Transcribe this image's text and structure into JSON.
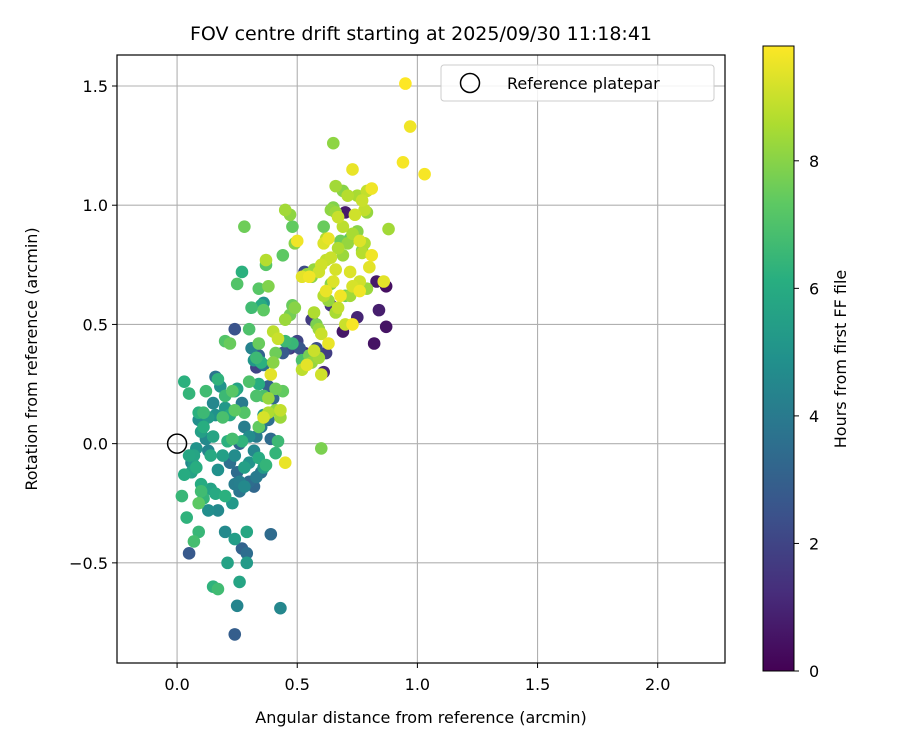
{
  "chart_data": {
    "type": "scatter",
    "title": "FOV centre drift starting at 2025/09/30 11:18:41",
    "xlabel": "Angular distance from reference (arcmin)",
    "ylabel": "Rotation from reference (arcmin)",
    "xlim": [
      -0.25,
      2.28
    ],
    "ylim": [
      -0.92,
      1.63
    ],
    "xticks": [
      0.0,
      0.5,
      1.0,
      1.5,
      2.0
    ],
    "xtick_labels": [
      "0.0",
      "0.5",
      "1.0",
      "1.5",
      "2.0"
    ],
    "yticks": [
      -0.5,
      0.0,
      0.5,
      1.0,
      1.5
    ],
    "ytick_labels": [
      "−0.5",
      "0.0",
      "0.5",
      "1.0",
      "1.5"
    ],
    "grid": true,
    "legend": {
      "placement": "top-right",
      "label": "Reference platepar"
    },
    "reference_point": {
      "x": 0.0,
      "y": 0.0
    },
    "colorbar": {
      "label": "Hours from first FF file",
      "colormap": "viridis",
      "range": [
        0,
        9.8
      ],
      "ticks": [
        0,
        2,
        4,
        6,
        8
      ],
      "tick_labels": [
        "0",
        "2",
        "4",
        "6",
        "8"
      ]
    },
    "points": [
      [
        0.03,
        0.26,
        6.2
      ],
      [
        0.05,
        0.21,
        6.4
      ],
      [
        0.02,
        -0.22,
        6.5
      ],
      [
        0.04,
        -0.31,
        6.3
      ],
      [
        0.03,
        -0.13,
        6.0
      ],
      [
        0.05,
        -0.05,
        5.8
      ],
      [
        0.06,
        -0.12,
        5.6
      ],
      [
        0.07,
        -0.09,
        5.2
      ],
      [
        0.08,
        -0.02,
        5.0
      ],
      [
        0.09,
        0.1,
        4.8
      ],
      [
        0.1,
        0.05,
        5.5
      ],
      [
        0.11,
        0.07,
        6.1
      ],
      [
        0.12,
        0.02,
        4.6
      ],
      [
        0.13,
        -0.03,
        4.4
      ],
      [
        0.14,
        -0.05,
        5.9
      ],
      [
        0.15,
        0.03,
        5.7
      ],
      [
        0.16,
        0.12,
        4.9
      ],
      [
        0.09,
        0.13,
        6.2
      ],
      [
        0.11,
        0.13,
        6.6
      ],
      [
        0.13,
        0.11,
        5.3
      ],
      [
        0.15,
        0.17,
        4.5
      ],
      [
        0.16,
        0.28,
        3.8
      ],
      [
        0.17,
        0.27,
        6.3
      ],
      [
        0.18,
        0.24,
        5.0
      ],
      [
        0.2,
        0.2,
        6.6
      ],
      [
        0.2,
        0.15,
        5.2
      ],
      [
        0.22,
        0.12,
        5.9
      ],
      [
        0.24,
        0.22,
        6.0
      ],
      [
        0.25,
        0.23,
        5.6
      ],
      [
        0.27,
        0.17,
        4.0
      ],
      [
        0.12,
        0.22,
        6.7
      ],
      [
        0.21,
        0.01,
        6.2
      ],
      [
        0.23,
        0.02,
        6.8
      ],
      [
        0.22,
        -0.08,
        3.6
      ],
      [
        0.24,
        -0.05,
        4.7
      ],
      [
        0.25,
        -0.12,
        3.4
      ],
      [
        0.26,
        -0.16,
        4.2
      ],
      [
        0.28,
        -0.1,
        5.5
      ],
      [
        0.3,
        -0.08,
        5.0
      ],
      [
        0.32,
        -0.03,
        4.5
      ],
      [
        0.34,
        -0.06,
        6.0
      ],
      [
        0.35,
        -0.12,
        3.7
      ],
      [
        0.36,
        -0.1,
        5.4
      ],
      [
        0.37,
        -0.09,
        6.4
      ],
      [
        0.33,
        0.03,
        4.0
      ],
      [
        0.35,
        0.07,
        3.9
      ],
      [
        0.36,
        0.12,
        5.2
      ],
      [
        0.38,
        0.1,
        3.6
      ],
      [
        0.39,
        0.02,
        3.4
      ],
      [
        0.3,
        0.03,
        4.7
      ],
      [
        0.26,
        0.0,
        3.2
      ],
      [
        0.27,
        0.01,
        6.3
      ],
      [
        0.28,
        0.07,
        4.1
      ],
      [
        0.19,
        -0.05,
        5.5
      ],
      [
        0.17,
        -0.11,
        4.9
      ],
      [
        0.14,
        -0.19,
        5.6
      ],
      [
        0.11,
        -0.23,
        6.4
      ],
      [
        0.1,
        -0.17,
        6.0
      ],
      [
        0.09,
        -0.25,
        7.3
      ],
      [
        0.1,
        -0.2,
        6.7
      ],
      [
        0.08,
        -0.1,
        6.1
      ],
      [
        0.07,
        -0.05,
        5.7
      ],
      [
        0.06,
        -0.08,
        4.6
      ],
      [
        0.05,
        -0.46,
        2.7
      ],
      [
        0.07,
        -0.41,
        6.8
      ],
      [
        0.09,
        -0.37,
        6.5
      ],
      [
        0.13,
        -0.28,
        4.8
      ],
      [
        0.17,
        -0.28,
        4.6
      ],
      [
        0.16,
        -0.21,
        5.9
      ],
      [
        0.2,
        -0.22,
        6.2
      ],
      [
        0.23,
        -0.25,
        5.2
      ],
      [
        0.24,
        -0.17,
        4.1
      ],
      [
        0.26,
        -0.2,
        3.8
      ],
      [
        0.28,
        -0.18,
        4.6
      ],
      [
        0.3,
        -0.16,
        3.5
      ],
      [
        0.32,
        -0.18,
        3.3
      ],
      [
        0.33,
        -0.14,
        4.0
      ],
      [
        0.2,
        -0.37,
        4.6
      ],
      [
        0.24,
        -0.4,
        5.4
      ],
      [
        0.29,
        -0.37,
        5.8
      ],
      [
        0.27,
        -0.44,
        3.1
      ],
      [
        0.29,
        -0.46,
        3.5
      ],
      [
        0.29,
        -0.5,
        5.3
      ],
      [
        0.21,
        -0.5,
        5.6
      ],
      [
        0.26,
        -0.58,
        5.7
      ],
      [
        0.15,
        -0.6,
        6.3
      ],
      [
        0.17,
        -0.61,
        6.7
      ],
      [
        0.25,
        -0.68,
        4.4
      ],
      [
        0.24,
        -0.8,
        2.9
      ],
      [
        0.43,
        -0.69,
        4.5
      ],
      [
        0.39,
        -0.38,
        3.4
      ],
      [
        0.41,
        -0.04,
        6.4
      ],
      [
        0.42,
        0.01,
        6.6
      ],
      [
        0.45,
        -0.08,
        9.5
      ],
      [
        0.6,
        -0.02,
        7.8
      ],
      [
        0.33,
        0.32,
        2.0
      ],
      [
        0.34,
        0.37,
        3.1
      ],
      [
        0.36,
        0.33,
        3.6
      ],
      [
        0.38,
        0.24,
        3.0
      ],
      [
        0.4,
        0.19,
        3.3
      ],
      [
        0.41,
        0.14,
        8.1
      ],
      [
        0.38,
        0.13,
        8.6
      ],
      [
        0.43,
        0.14,
        8.9
      ],
      [
        0.36,
        0.11,
        9.2
      ],
      [
        0.39,
        0.29,
        9.4
      ],
      [
        0.38,
        0.19,
        8.2
      ],
      [
        0.4,
        0.34,
        8.0
      ],
      [
        0.41,
        0.38,
        7.6
      ],
      [
        0.44,
        0.22,
        7.4
      ],
      [
        0.33,
        0.36,
        6.6
      ],
      [
        0.34,
        0.25,
        6.1
      ],
      [
        0.34,
        0.42,
        7.5
      ],
      [
        0.36,
        0.2,
        6.9
      ],
      [
        0.3,
        0.48,
        7.0
      ],
      [
        0.35,
        0.58,
        6.0
      ],
      [
        0.36,
        0.56,
        7.3
      ],
      [
        0.4,
        0.47,
        8.8
      ],
      [
        0.42,
        0.44,
        9.0
      ],
      [
        0.45,
        0.52,
        8.3
      ],
      [
        0.47,
        0.54,
        7.7
      ],
      [
        0.48,
        0.58,
        7.5
      ],
      [
        0.49,
        0.57,
        8.0
      ],
      [
        0.45,
        0.43,
        6.6
      ],
      [
        0.47,
        0.4,
        1.5
      ],
      [
        0.49,
        0.41,
        1.2
      ],
      [
        0.5,
        0.43,
        2.0
      ],
      [
        0.51,
        0.4,
        2.6
      ],
      [
        0.53,
        0.38,
        1.3
      ],
      [
        0.52,
        0.35,
        6.9
      ],
      [
        0.54,
        0.33,
        9.4
      ],
      [
        0.55,
        0.37,
        7.7
      ],
      [
        0.56,
        0.34,
        8.2
      ],
      [
        0.57,
        0.39,
        9.0
      ],
      [
        0.58,
        0.4,
        2.3
      ],
      [
        0.59,
        0.36,
        8.4
      ],
      [
        0.6,
        0.29,
        9.1
      ],
      [
        0.61,
        0.3,
        1.1
      ],
      [
        0.62,
        0.38,
        1.8
      ],
      [
        0.63,
        0.42,
        9.5
      ],
      [
        0.52,
        0.31,
        8.8
      ],
      [
        0.53,
        0.72,
        2.2
      ],
      [
        0.55,
        0.7,
        9.6
      ],
      [
        0.52,
        0.7,
        9.4
      ],
      [
        0.57,
        0.55,
        8.6
      ],
      [
        0.59,
        0.48,
        8.3
      ],
      [
        0.56,
        0.52,
        1.7
      ],
      [
        0.58,
        0.5,
        7.8
      ],
      [
        0.6,
        0.46,
        9.0
      ],
      [
        0.61,
        0.62,
        8.7
      ],
      [
        0.62,
        0.64,
        9.5
      ],
      [
        0.63,
        0.6,
        8.2
      ],
      [
        0.64,
        0.58,
        1.5
      ],
      [
        0.64,
        0.67,
        8.0
      ],
      [
        0.65,
        0.68,
        9.3
      ],
      [
        0.66,
        0.55,
        8.5
      ],
      [
        0.67,
        0.57,
        8.9
      ],
      [
        0.68,
        0.62,
        9.6
      ],
      [
        0.69,
        0.47,
        0.6
      ],
      [
        0.7,
        0.5,
        9.0
      ],
      [
        0.72,
        0.62,
        8.4
      ],
      [
        0.73,
        0.66,
        9.2
      ],
      [
        0.73,
        0.5,
        9.7
      ],
      [
        0.75,
        0.53,
        1.0
      ],
      [
        0.76,
        0.68,
        9.1
      ],
      [
        0.79,
        0.65,
        8.3
      ],
      [
        0.82,
        0.42,
        0.5
      ],
      [
        0.84,
        0.56,
        0.8
      ],
      [
        0.83,
        0.68,
        0.7
      ],
      [
        0.86,
        0.68,
        9.4
      ],
      [
        0.87,
        0.66,
        0.4
      ],
      [
        0.87,
        0.49,
        0.5
      ],
      [
        0.44,
        0.38,
        2.8
      ],
      [
        0.46,
        0.4,
        2.3
      ],
      [
        0.48,
        0.42,
        6.5
      ],
      [
        0.38,
        0.66,
        7.9
      ],
      [
        0.37,
        0.75,
        7.2
      ],
      [
        0.37,
        0.77,
        8.7
      ],
      [
        0.44,
        0.79,
        7.3
      ],
      [
        0.45,
        0.98,
        8.4
      ],
      [
        0.47,
        0.96,
        8.1
      ],
      [
        0.48,
        0.91,
        7.4
      ],
      [
        0.49,
        0.84,
        8.0
      ],
      [
        0.5,
        0.85,
        9.6
      ],
      [
        0.57,
        0.73,
        8.2
      ],
      [
        0.6,
        0.75,
        9.1
      ],
      [
        0.61,
        0.84,
        9.3
      ],
      [
        0.62,
        0.86,
        8.6
      ],
      [
        0.63,
        0.86,
        9.5
      ],
      [
        0.64,
        0.78,
        9.0
      ],
      [
        0.64,
        0.98,
        8.1
      ],
      [
        0.65,
        0.99,
        7.9
      ],
      [
        0.66,
        0.97,
        8.3
      ],
      [
        0.67,
        0.95,
        9.0
      ],
      [
        0.67,
        0.82,
        8.6
      ],
      [
        0.68,
        0.85,
        7.6
      ],
      [
        0.69,
        0.91,
        8.8
      ],
      [
        0.7,
        0.97,
        0.7
      ],
      [
        0.71,
        0.84,
        8.2
      ],
      [
        0.72,
        0.86,
        7.3
      ],
      [
        0.73,
        0.88,
        8.5
      ],
      [
        0.74,
        0.96,
        9.1
      ],
      [
        0.75,
        0.89,
        8.0
      ],
      [
        0.76,
        0.85,
        9.3
      ],
      [
        0.77,
        0.81,
        7.9
      ],
      [
        0.78,
        0.84,
        8.6
      ],
      [
        0.78,
        0.98,
        8.9
      ],
      [
        0.79,
        0.97,
        8.2
      ],
      [
        0.8,
        0.74,
        9.4
      ],
      [
        0.81,
        0.79,
        9.6
      ],
      [
        0.88,
        0.9,
        8.4
      ],
      [
        0.65,
        1.26,
        8.1
      ],
      [
        0.66,
        1.08,
        8.4
      ],
      [
        0.69,
        1.06,
        8.0
      ],
      [
        0.71,
        1.04,
        8.7
      ],
      [
        0.73,
        1.15,
        9.5
      ],
      [
        0.75,
        1.04,
        8.5
      ],
      [
        0.77,
        1.02,
        9.0
      ],
      [
        0.79,
        1.06,
        8.9
      ],
      [
        0.81,
        1.07,
        9.6
      ],
      [
        0.94,
        1.18,
        9.7
      ],
      [
        0.95,
        1.51,
        9.8
      ],
      [
        0.97,
        1.33,
        9.6
      ],
      [
        1.03,
        1.13,
        9.7
      ],
      [
        0.77,
        0.8,
        8.7
      ],
      [
        0.76,
        0.64,
        9.6
      ],
      [
        0.72,
        0.72,
        9.3
      ],
      [
        0.7,
        0.62,
        7.7
      ],
      [
        0.69,
        0.79,
        8.3
      ],
      [
        0.66,
        0.73,
        9.2
      ],
      [
        0.62,
        0.77,
        8.9
      ],
      [
        0.61,
        0.91,
        7.5
      ],
      [
        0.59,
        0.72,
        9.1
      ],
      [
        0.56,
        0.7,
        8.0
      ],
      [
        0.54,
        0.71,
        8.3
      ],
      [
        0.27,
        0.72,
        6.2
      ],
      [
        0.28,
        0.91,
        7.6
      ],
      [
        0.36,
        0.59,
        5.0
      ],
      [
        0.34,
        0.65,
        7.2
      ],
      [
        0.31,
        0.57,
        6.7
      ],
      [
        0.25,
        0.67,
        7.1
      ],
      [
        0.24,
        0.48,
        2.5
      ],
      [
        0.2,
        0.43,
        7.1
      ],
      [
        0.22,
        0.42,
        7.5
      ],
      [
        0.31,
        0.4,
        4.3
      ],
      [
        0.32,
        0.35,
        5.1
      ],
      [
        0.35,
        0.34,
        6.2
      ],
      [
        0.3,
        0.26,
        7.0
      ],
      [
        0.33,
        0.2,
        7.0
      ],
      [
        0.28,
        0.13,
        7.1
      ],
      [
        0.34,
        0.07,
        7.4
      ],
      [
        0.24,
        0.14,
        7.3
      ],
      [
        0.19,
        0.11,
        6.9
      ],
      [
        0.23,
        0.22,
        7.2
      ],
      [
        0.41,
        0.23,
        7.6
      ],
      [
        0.43,
        0.11,
        8.3
      ]
    ]
  }
}
